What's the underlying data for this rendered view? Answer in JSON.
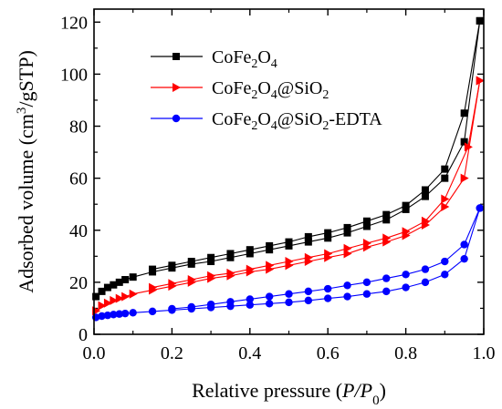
{
  "chart_data": {
    "type": "line",
    "title": "",
    "xlabel": {
      "pre": "Relative pressure (",
      "v1": "P",
      "sep": "/",
      "v2": "P",
      "sub": "0",
      "post": ")"
    },
    "ylabel": {
      "pre": "Adsorbed volume (cm",
      "sup": "3",
      "post": "/gSTP)"
    },
    "xlim": [
      0,
      1.0
    ],
    "ylim": [
      0,
      125
    ],
    "xticks": [
      0.0,
      0.2,
      0.4,
      0.6,
      0.8,
      1.0
    ],
    "xtick_labels": [
      "0.0",
      "0.2",
      "0.4",
      "0.6",
      "0.8",
      "1.0"
    ],
    "yticks": [
      0,
      20,
      40,
      60,
      80,
      100,
      120
    ],
    "ytick_labels": [
      "0",
      "20",
      "40",
      "60",
      "80",
      "100",
      "120"
    ],
    "legend_position": "top-left",
    "series": [
      {
        "name": "CoFe2O4",
        "legend_parts": [
          [
            "CoFe",
            "n"
          ],
          [
            "2",
            "sub"
          ],
          [
            "O",
            "n"
          ],
          [
            "4",
            "sub"
          ]
        ],
        "color": "#000000",
        "marker": "square",
        "adsorption": [
          [
            0.005,
            14.5
          ],
          [
            0.02,
            16.5
          ],
          [
            0.035,
            18.0
          ],
          [
            0.05,
            19.0
          ],
          [
            0.065,
            20.0
          ],
          [
            0.08,
            21.0
          ],
          [
            0.1,
            22.0
          ],
          [
            0.15,
            24.0
          ],
          [
            0.2,
            25.5
          ],
          [
            0.25,
            27.0
          ],
          [
            0.3,
            28.0
          ],
          [
            0.35,
            29.5
          ],
          [
            0.4,
            31.0
          ],
          [
            0.45,
            32.5
          ],
          [
            0.5,
            34.0
          ],
          [
            0.55,
            35.5
          ],
          [
            0.6,
            37.0
          ],
          [
            0.65,
            39.0
          ],
          [
            0.7,
            41.5
          ],
          [
            0.75,
            44.0
          ],
          [
            0.8,
            48.0
          ],
          [
            0.85,
            53.0
          ],
          [
            0.9,
            60.0
          ],
          [
            0.95,
            74.0
          ],
          [
            0.99,
            120.5
          ]
        ],
        "desorption": [
          [
            0.99,
            120.5
          ],
          [
            0.95,
            85.0
          ],
          [
            0.9,
            63.5
          ],
          [
            0.85,
            55.5
          ],
          [
            0.8,
            49.5
          ],
          [
            0.75,
            46.0
          ],
          [
            0.7,
            43.5
          ],
          [
            0.65,
            41.0
          ],
          [
            0.6,
            39.0
          ],
          [
            0.55,
            37.5
          ],
          [
            0.5,
            35.5
          ],
          [
            0.45,
            34.0
          ],
          [
            0.4,
            32.5
          ],
          [
            0.35,
            31.0
          ],
          [
            0.3,
            29.5
          ],
          [
            0.25,
            28.0
          ],
          [
            0.2,
            26.5
          ],
          [
            0.15,
            25.0
          ]
        ]
      },
      {
        "name": "CoFe2O4@SiO2",
        "legend_parts": [
          [
            "CoFe",
            "n"
          ],
          [
            "2",
            "sub"
          ],
          [
            "O",
            "n"
          ],
          [
            "4",
            "sub"
          ],
          [
            "@SiO",
            "n"
          ],
          [
            "2",
            "sub"
          ]
        ],
        "color": "#ff0000",
        "marker": "triangle-right",
        "adsorption": [
          [
            0.005,
            9.0
          ],
          [
            0.02,
            11.0
          ],
          [
            0.035,
            12.0
          ],
          [
            0.05,
            13.0
          ],
          [
            0.065,
            13.8
          ],
          [
            0.08,
            14.5
          ],
          [
            0.1,
            15.5
          ],
          [
            0.15,
            17.0
          ],
          [
            0.2,
            18.5
          ],
          [
            0.25,
            20.0
          ],
          [
            0.3,
            21.5
          ],
          [
            0.35,
            22.5
          ],
          [
            0.4,
            24.0
          ],
          [
            0.45,
            25.0
          ],
          [
            0.5,
            26.5
          ],
          [
            0.55,
            28.0
          ],
          [
            0.6,
            29.5
          ],
          [
            0.65,
            31.0
          ],
          [
            0.7,
            33.5
          ],
          [
            0.75,
            35.5
          ],
          [
            0.8,
            38.0
          ],
          [
            0.85,
            42.0
          ],
          [
            0.9,
            49.0
          ],
          [
            0.95,
            60.0
          ],
          [
            0.99,
            97.5
          ]
        ],
        "desorption": [
          [
            0.99,
            97.5
          ],
          [
            0.96,
            72.0
          ],
          [
            0.9,
            52.0
          ],
          [
            0.85,
            43.5
          ],
          [
            0.8,
            39.5
          ],
          [
            0.75,
            37.0
          ],
          [
            0.7,
            35.0
          ],
          [
            0.65,
            33.0
          ],
          [
            0.6,
            31.0
          ],
          [
            0.55,
            29.5
          ],
          [
            0.5,
            28.0
          ],
          [
            0.45,
            26.5
          ],
          [
            0.4,
            25.0
          ],
          [
            0.35,
            23.5
          ],
          [
            0.3,
            22.5
          ],
          [
            0.25,
            21.0
          ],
          [
            0.2,
            19.5
          ],
          [
            0.15,
            18.0
          ]
        ]
      },
      {
        "name": "CoFe2O4@SiO2-EDTA",
        "legend_parts": [
          [
            "CoFe",
            "n"
          ],
          [
            "2",
            "sub"
          ],
          [
            "O",
            "n"
          ],
          [
            "4",
            "sub"
          ],
          [
            "@SiO",
            "n"
          ],
          [
            "2",
            "sub"
          ],
          [
            "-EDTA",
            "n"
          ]
        ],
        "color": "#0000ff",
        "marker": "circle",
        "adsorption": [
          [
            0.005,
            6.5
          ],
          [
            0.02,
            7.0
          ],
          [
            0.035,
            7.3
          ],
          [
            0.05,
            7.6
          ],
          [
            0.065,
            7.8
          ],
          [
            0.08,
            8.0
          ],
          [
            0.1,
            8.3
          ],
          [
            0.15,
            8.8
          ],
          [
            0.2,
            9.3
          ],
          [
            0.25,
            9.8
          ],
          [
            0.3,
            10.3
          ],
          [
            0.35,
            10.8
          ],
          [
            0.4,
            11.3
          ],
          [
            0.45,
            11.8
          ],
          [
            0.5,
            12.3
          ],
          [
            0.55,
            13.0
          ],
          [
            0.6,
            13.8
          ],
          [
            0.65,
            14.5
          ],
          [
            0.7,
            15.5
          ],
          [
            0.75,
            16.5
          ],
          [
            0.8,
            18.0
          ],
          [
            0.85,
            20.0
          ],
          [
            0.9,
            23.0
          ],
          [
            0.95,
            29.0
          ],
          [
            0.99,
            48.5
          ]
        ],
        "desorption": [
          [
            0.99,
            48.5
          ],
          [
            0.95,
            34.5
          ],
          [
            0.9,
            28.0
          ],
          [
            0.85,
            25.0
          ],
          [
            0.8,
            23.0
          ],
          [
            0.75,
            21.5
          ],
          [
            0.7,
            20.0
          ],
          [
            0.65,
            18.8
          ],
          [
            0.6,
            17.5
          ],
          [
            0.55,
            16.5
          ],
          [
            0.5,
            15.5
          ],
          [
            0.45,
            14.5
          ],
          [
            0.4,
            13.5
          ],
          [
            0.35,
            12.5
          ],
          [
            0.3,
            11.5
          ],
          [
            0.25,
            10.5
          ],
          [
            0.2,
            9.8
          ]
        ]
      }
    ]
  }
}
